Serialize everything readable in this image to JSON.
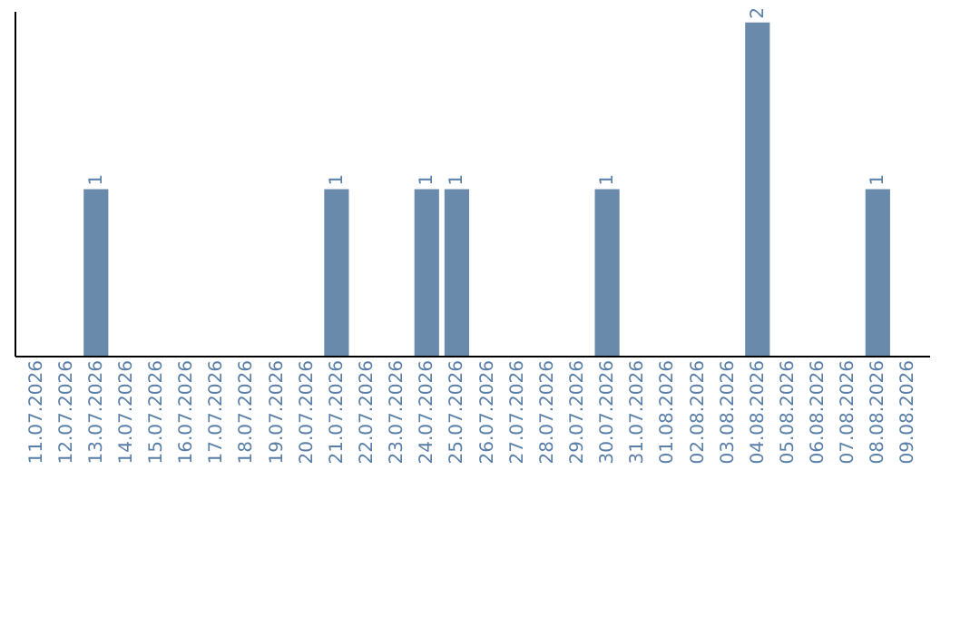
{
  "chart_data": {
    "type": "bar",
    "categories": [
      "11.07.2026",
      "12.07.2026",
      "13.07.2026",
      "14.07.2026",
      "15.07.2026",
      "16.07.2026",
      "17.07.2026",
      "18.07.2026",
      "19.07.2026",
      "20.07.2026",
      "21.07.2026",
      "22.07.2026",
      "23.07.2026",
      "24.07.2026",
      "25.07.2026",
      "26.07.2026",
      "27.07.2026",
      "28.07.2026",
      "29.07.2026",
      "30.07.2026",
      "31.07.2026",
      "01.08.2026",
      "02.08.2026",
      "03.08.2026",
      "04.08.2026",
      "05.08.2026",
      "06.08.2026",
      "07.08.2026",
      "08.08.2026",
      "09.08.2026"
    ],
    "values": [
      0,
      0,
      1,
      0,
      0,
      0,
      0,
      0,
      0,
      0,
      1,
      0,
      0,
      1,
      1,
      0,
      0,
      0,
      0,
      1,
      0,
      0,
      0,
      0,
      2,
      0,
      0,
      0,
      1,
      0
    ],
    "value_labels": [
      null,
      null,
      "1",
      null,
      null,
      null,
      null,
      null,
      null,
      null,
      "1",
      null,
      null,
      "1",
      "1",
      null,
      null,
      null,
      null,
      "1",
      null,
      null,
      null,
      null,
      "2",
      null,
      null,
      null,
      "1",
      null
    ],
    "color": "#6a8aab",
    "ylim": [
      0,
      2.07
    ],
    "tick_labels": "x",
    "grid": false
  }
}
